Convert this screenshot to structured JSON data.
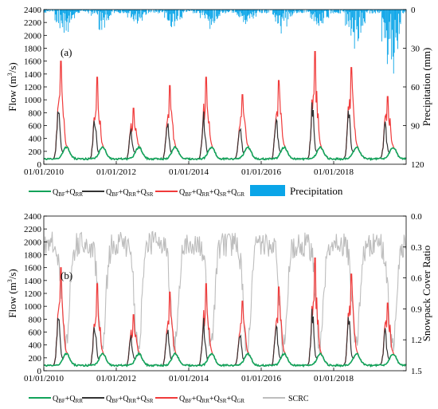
{
  "colors": {
    "base_flow": "#11a35a",
    "snow_runoff": "#333333",
    "glacier_runoff": "#f03a3a",
    "precipitation": "#0aa5e8",
    "scrc": "#bdbdbd"
  },
  "chart_data": [
    {
      "panel": "(a)",
      "type": "line",
      "ylabel": "Flow (m³/s)",
      "y2label": "Precipitation (mm)",
      "ylim": [
        0,
        2400
      ],
      "y2lim": [
        0,
        120
      ],
      "y2_inverted": true,
      "yticks": [
        0,
        200,
        400,
        600,
        800,
        1000,
        1200,
        1400,
        1600,
        1800,
        2000,
        2200,
        2400
      ],
      "y2ticks": [
        0,
        30,
        60,
        90,
        120
      ],
      "xlim": [
        "2010-01-01",
        "2020-01-01"
      ],
      "xticks": [
        "01/01/2010",
        "01/01/2012",
        "01/01/2014",
        "01/01/2016",
        "01/01/2018"
      ],
      "annual_peaks": {
        "years": [
          2010,
          2011,
          2012,
          2013,
          2014,
          2015,
          2016,
          2017,
          2018,
          2019
        ],
        "total_flow_peak": [
          1600,
          1350,
          870,
          1220,
          1350,
          1080,
          1300,
          1750,
          1500,
          1050
        ],
        "precipitation_max_mm": [
          22,
          18,
          15,
          16,
          17,
          14,
          20,
          16,
          35,
          60
        ]
      },
      "series": [
        {
          "name": "QBF+QRR"
        },
        {
          "name": "QBF+QRR+QSR"
        },
        {
          "name": "QBF+QRR+QSR+QGR"
        },
        {
          "name": "Precipitation"
        }
      ]
    },
    {
      "panel": "(b)",
      "type": "line",
      "ylabel": "Flow (m³/s)",
      "y2label": "Snowpack Cover Ratio",
      "ylim": [
        0,
        2400
      ],
      "y2lim": [
        0.0,
        1.5
      ],
      "y2_inverted": true,
      "yticks": [
        0,
        200,
        400,
        600,
        800,
        1000,
        1200,
        1400,
        1600,
        1800,
        2000,
        2200,
        2400
      ],
      "y2ticks": [
        "0.0",
        "0.3",
        "0.6",
        "0.9",
        "1.2",
        "1.5"
      ],
      "xlim": [
        "2010-01-01",
        "2020-01-01"
      ],
      "xticks": [
        "01/01/2010",
        "01/01/2012",
        "01/01/2014",
        "01/01/2016",
        "01/01/2018"
      ],
      "series": [
        {
          "name": "QBF+QRR"
        },
        {
          "name": "QBF+QRR+QSR"
        },
        {
          "name": "QBF+QRR+QSR+QGR"
        },
        {
          "name": "SCRC"
        }
      ]
    }
  ],
  "legend_a": {
    "item1": {
      "q1": "Q",
      "s1": "BF",
      "p1": "+Q",
      "s2": "RR"
    },
    "item2": {
      "q1": "Q",
      "s1": "BF",
      "p1": "+Q",
      "s2": "RR",
      "p2": "+Q",
      "s3": "SR"
    },
    "item3": {
      "q1": "Q",
      "s1": "BF",
      "p1": "+Q",
      "s2": "RR",
      "p2": "+Q",
      "s3": "SR",
      "p3": "+Q",
      "s4": "GR"
    },
    "item4": "Precipitation"
  },
  "legend_b": {
    "item4": "SCRC"
  }
}
